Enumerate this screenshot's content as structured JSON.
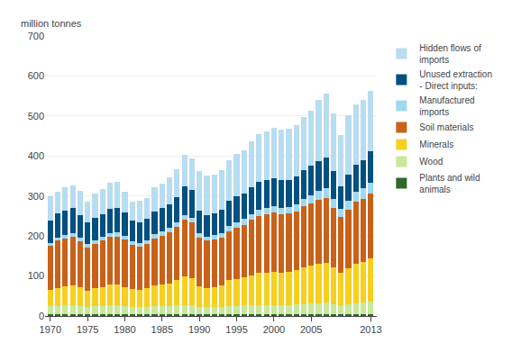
{
  "chart_data": {
    "type": "bar",
    "stacked": true,
    "ylabel": "million tonnes",
    "x": [
      1970,
      1971,
      1972,
      1973,
      1974,
      1975,
      1976,
      1977,
      1978,
      1979,
      1980,
      1981,
      1982,
      1983,
      1984,
      1985,
      1986,
      1987,
      1988,
      1989,
      1990,
      1991,
      1992,
      1993,
      1994,
      1995,
      1996,
      1997,
      1998,
      1999,
      2000,
      2001,
      2002,
      2003,
      2004,
      2005,
      2006,
      2007,
      2008,
      2009,
      2010,
      2011,
      2012,
      2013
    ],
    "series": [
      {
        "name": "Plants and wild\nanimals",
        "color": "#2d6929",
        "values": [
          5,
          5,
          5,
          5,
          5,
          5,
          5,
          5,
          5,
          5,
          5,
          5,
          5,
          5,
          5,
          5,
          5,
          5,
          5,
          5,
          5,
          5,
          5,
          5,
          5,
          5,
          5,
          5,
          5,
          5,
          5,
          5,
          5,
          5,
          5,
          5,
          5,
          5,
          5,
          5,
          5,
          5,
          5,
          5
        ]
      },
      {
        "name": "Wood",
        "color": "#c8e89a",
        "values": [
          20,
          20,
          22,
          22,
          20,
          18,
          20,
          20,
          22,
          22,
          20,
          18,
          17,
          18,
          19,
          20,
          20,
          22,
          23,
          22,
          17,
          17,
          18,
          18,
          20,
          20,
          21,
          22,
          22,
          22,
          23,
          23,
          23,
          24,
          25,
          26,
          27,
          28,
          25,
          22,
          25,
          27,
          28,
          30
        ]
      },
      {
        "name": "Minerals",
        "color": "#f5d020",
        "values": [
          40,
          45,
          48,
          50,
          46,
          40,
          44,
          48,
          52,
          52,
          48,
          44,
          44,
          46,
          52,
          54,
          56,
          62,
          70,
          68,
          52,
          48,
          50,
          54,
          65,
          68,
          70,
          75,
          80,
          82,
          82,
          80,
          82,
          85,
          92,
          96,
          98,
          100,
          92,
          82,
          90,
          98,
          102,
          108
        ]
      },
      {
        "name": "Soil materials",
        "color": "#c8621a",
        "values": [
          110,
          118,
          118,
          120,
          115,
          108,
          110,
          115,
          118,
          120,
          118,
          110,
          108,
          112,
          118,
          122,
          128,
          133,
          143,
          138,
          122,
          118,
          118,
          118,
          122,
          128,
          132,
          138,
          143,
          146,
          148,
          146,
          146,
          148,
          152,
          155,
          160,
          162,
          148,
          138,
          145,
          155,
          158,
          162
        ]
      },
      {
        "name": "Manufactured\nimports",
        "color": "#a0d8f0",
        "values": [
          8,
          8,
          10,
          10,
          9,
          8,
          9,
          9,
          10,
          10,
          10,
          9,
          9,
          9,
          10,
          10,
          11,
          11,
          12,
          12,
          12,
          11,
          11,
          12,
          13,
          14,
          14,
          15,
          16,
          16,
          17,
          17,
          17,
          18,
          19,
          20,
          22,
          24,
          22,
          20,
          22,
          25,
          26,
          28
        ]
      },
      {
        "name": "Unused extraction\n- Direct inputs:",
        "color": "#005080",
        "values": [
          55,
          60,
          60,
          62,
          58,
          54,
          57,
          58,
          60,
          60,
          58,
          52,
          52,
          53,
          58,
          58,
          58,
          64,
          72,
          70,
          56,
          54,
          54,
          58,
          62,
          65,
          65,
          68,
          70,
          70,
          70,
          68,
          68,
          70,
          72,
          74,
          76,
          78,
          70,
          58,
          66,
          68,
          70,
          78
        ]
      },
      {
        "name": "Hidden flows of\nimports",
        "color": "#b8dcf0",
        "values": [
          62,
          55,
          58,
          57,
          60,
          52,
          60,
          63,
          66,
          66,
          52,
          48,
          52,
          52,
          60,
          62,
          68,
          70,
          78,
          78,
          98,
          98,
          98,
          100,
          102,
          106,
          108,
          114,
          118,
          120,
          126,
          126,
          128,
          128,
          132,
          138,
          152,
          158,
          145,
          128,
          148,
          152,
          152,
          152
        ]
      }
    ],
    "xlim": [
      1969.3,
      2013.8
    ],
    "xticks": [
      1970,
      1975,
      1980,
      1985,
      1990,
      1995,
      2000,
      2005,
      2013
    ],
    "ylim": [
      0,
      700
    ],
    "yticks": [
      0,
      100,
      200,
      300,
      400,
      500,
      600,
      700
    ],
    "grid": true,
    "legend": "right"
  }
}
